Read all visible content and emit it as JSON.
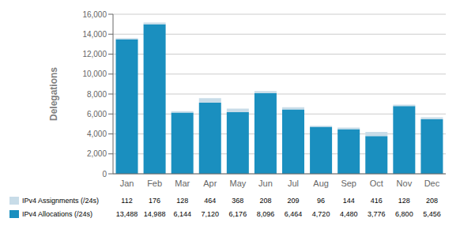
{
  "chart_data": {
    "type": "bar",
    "stacked": true,
    "categories": [
      "Jan",
      "Feb",
      "Mar",
      "Apr",
      "May",
      "Jun",
      "Jul",
      "Aug",
      "Sep",
      "Oct",
      "Nov",
      "Dec"
    ],
    "series": [
      {
        "name": "IPv4 Allocations (/24s)",
        "color": "#1a8fbf",
        "values": [
          13488,
          14988,
          6144,
          7120,
          6176,
          8096,
          6464,
          4720,
          4480,
          3776,
          6800,
          5456
        ],
        "value_labels": [
          "13,488",
          "14,988",
          "6,144",
          "7,120",
          "6,176",
          "8,096",
          "6,464",
          "4,720",
          "4,480",
          "3,776",
          "6,800",
          "5,456"
        ]
      },
      {
        "name": "IPv4 Assignments (/24s)",
        "color": "#c8dce8",
        "values": [
          112,
          176,
          128,
          464,
          368,
          208,
          209,
          96,
          144,
          416,
          128,
          208
        ]
      }
    ],
    "ylabel": "Delegations",
    "ylim": [
      0,
      16000
    ],
    "yticks": [
      0,
      {
        "value": 2000,
        "label": "2,000"
      },
      {
        "value": 4000,
        "label": "4,000"
      },
      {
        "value": 6000,
        "label": "6,000"
      },
      {
        "value": 8000,
        "label": "8,000"
      },
      {
        "value": 10000,
        "label": "10,000"
      },
      {
        "value": 12000,
        "label": "12,000"
      },
      {
        "value": 14000,
        "label": "14,000"
      },
      {
        "value": 16000,
        "label": "16,000"
      }
    ],
    "grid": true,
    "data_labels": true
  }
}
